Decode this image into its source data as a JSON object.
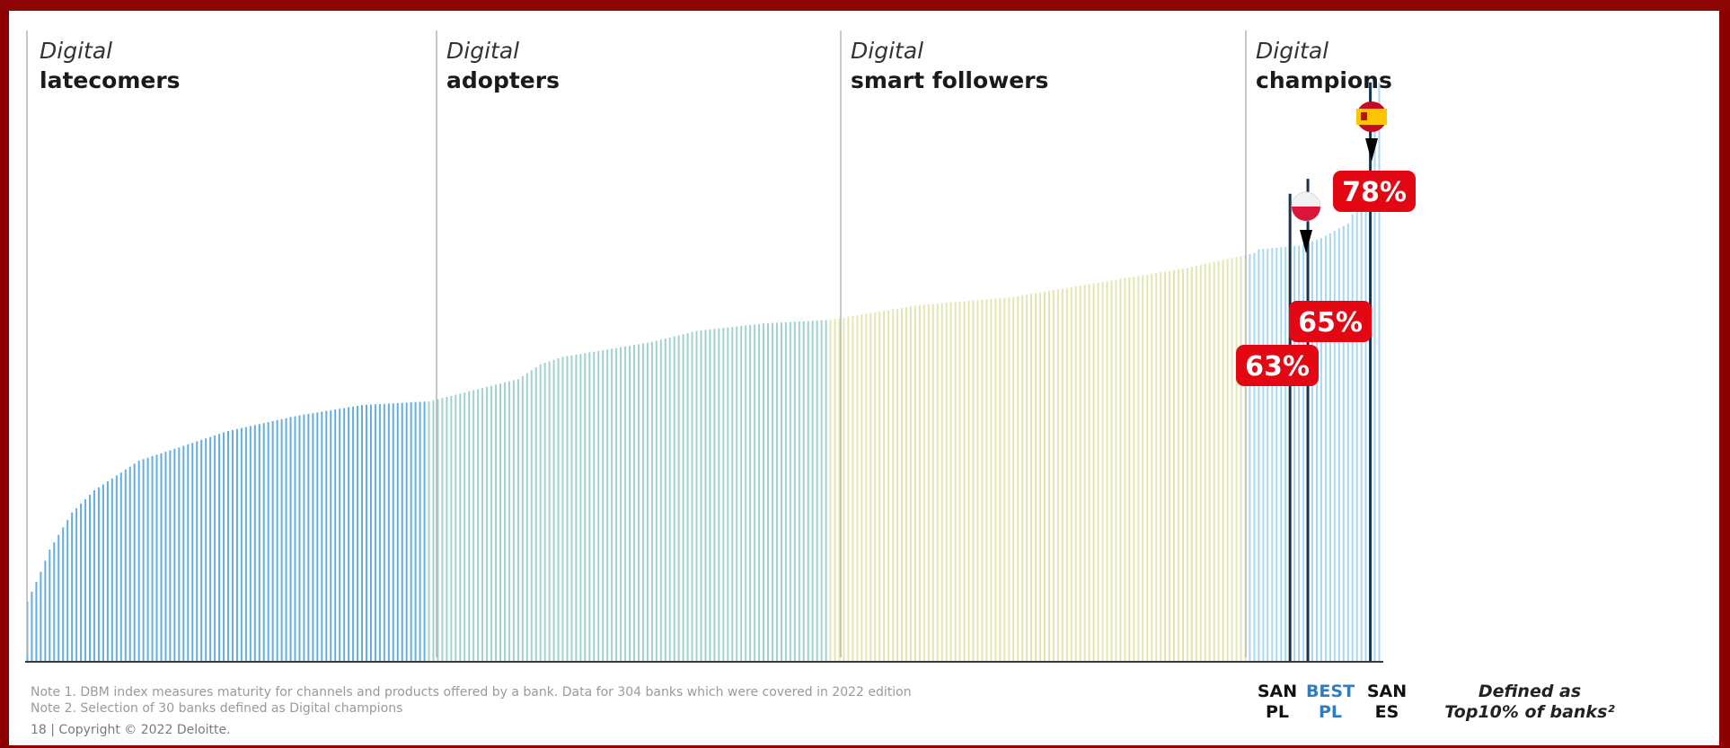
{
  "segments": [
    {
      "italic": "Digital",
      "bold": "latecomers"
    },
    {
      "italic": "Digital",
      "bold": "adopters"
    },
    {
      "italic": "Digital",
      "bold": "smart followers"
    },
    {
      "italic": "Digital",
      "bold": "champions"
    }
  ],
  "colors": {
    "latecomers": "#62aee3",
    "adopters": "#9fd2cf",
    "smart_followers": "#e4e6b2",
    "champions": "#a8d8f2",
    "highlight_line": "#17344f",
    "callout": "#e30613",
    "best_label": "#2f7dc1"
  },
  "chart_data": {
    "type": "bar",
    "n_banks": 304,
    "value_anchors": [
      [
        0,
        8
      ],
      [
        3,
        12
      ],
      [
        5,
        15
      ],
      [
        8,
        18
      ],
      [
        10,
        20
      ],
      [
        15,
        23
      ],
      [
        20,
        25
      ],
      [
        25,
        27
      ],
      [
        35,
        29
      ],
      [
        45,
        31
      ],
      [
        60,
        33
      ],
      [
        75,
        34.5
      ],
      [
        90,
        35
      ],
      [
        110,
        38
      ],
      [
        115,
        40
      ],
      [
        120,
        41
      ],
      [
        130,
        42
      ],
      [
        140,
        43
      ],
      [
        150,
        44.5
      ],
      [
        165,
        45.5
      ],
      [
        180,
        46
      ],
      [
        200,
        48
      ],
      [
        220,
        49
      ],
      [
        240,
        51
      ],
      [
        260,
        53
      ],
      [
        275,
        55
      ],
      [
        276,
        55.5
      ],
      [
        285,
        56
      ],
      [
        290,
        57
      ],
      [
        296,
        59
      ],
      [
        300,
        64
      ],
      [
        302,
        72
      ],
      [
        303,
        78
      ]
    ],
    "ylim": [
      0,
      85
    ],
    "markers": [
      {
        "position": 283,
        "value": 63,
        "label": "63%",
        "name": "SAN PL"
      },
      {
        "position": 287,
        "value": 65,
        "label": "65%",
        "name": "BEST PL"
      },
      {
        "position": 301,
        "value": 78,
        "label": "78%",
        "name": "SAN ES"
      }
    ]
  },
  "bottom_labels": {
    "san_pl": [
      "SAN",
      "PL"
    ],
    "best_pl": [
      "BEST",
      "PL"
    ],
    "san_es": [
      "SAN",
      "ES"
    ]
  },
  "definition": [
    "Defined as",
    "Top10% of banks²"
  ],
  "notes": [
    "Note 1. DBM index measures maturity for channels and products offered by a bank. Data for 304 banks which were covered in 2022 edition",
    "Note 2. Selection of 30 banks defined as Digital champions"
  ],
  "footer": "18  |  Copyright © 2022 Deloitte."
}
